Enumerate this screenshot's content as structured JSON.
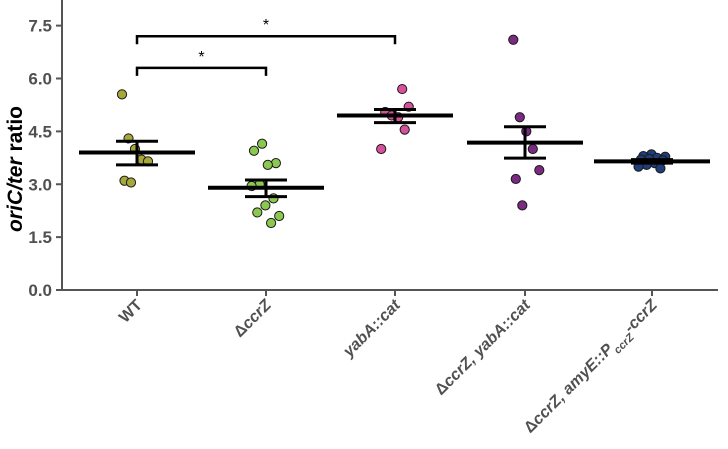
{
  "chart_data": {
    "type": "scatter",
    "style": "dot-plot with mean and SEM error bars",
    "title": "",
    "ylabel": {
      "italic": "oriC/ter",
      "normal": " ratio"
    },
    "xlabel": "",
    "ylim": [
      0,
      8.0
    ],
    "yticks": [
      "0.0",
      "1.5",
      "3.0",
      "4.5",
      "6.0",
      "7.5"
    ],
    "yticks_values": [
      0.0,
      1.5,
      3.0,
      4.5,
      6.0,
      7.5
    ],
    "grid": false,
    "groups": [
      {
        "name": "WT",
        "label_parts": [
          {
            "text": "WT",
            "style": "normal"
          }
        ],
        "color": "#a6a83a",
        "points": [
          5.55,
          4.3,
          4.0,
          3.7,
          3.65,
          3.1,
          3.05
        ],
        "mean": 3.9,
        "sem_low": 3.55,
        "sem_high": 4.22
      },
      {
        "name": "ΔccrZ",
        "label_parts": [
          {
            "text": "Δ",
            "style": "normal"
          },
          {
            "text": "ccrZ",
            "style": "italic"
          }
        ],
        "color": "#8ac850",
        "points": [
          4.15,
          3.95,
          3.6,
          3.55,
          3.0,
          2.95,
          2.6,
          2.4,
          2.2,
          2.1,
          1.9
        ],
        "mean": 2.9,
        "sem_low": 2.65,
        "sem_high": 3.12
      },
      {
        "name": "yabA::cat",
        "label_parts": [
          {
            "text": "yabA::cat",
            "style": "italic"
          }
        ],
        "color": "#d6509c",
        "points": [
          5.7,
          5.2,
          5.05,
          4.95,
          4.9,
          4.55,
          4.0
        ],
        "mean": 4.95,
        "sem_low": 4.75,
        "sem_high": 5.12
      },
      {
        "name": "ΔccrZ, yabA::cat",
        "label_parts": [
          {
            "text": "Δ",
            "style": "normal"
          },
          {
            "text": "ccrZ, yabA::cat",
            "style": "italic"
          }
        ],
        "color": "#7a2a82",
        "points": [
          7.1,
          4.9,
          4.5,
          4.0,
          3.4,
          3.15,
          2.4
        ],
        "mean": 4.18,
        "sem_low": 3.74,
        "sem_high": 4.63
      },
      {
        "name": "ΔccrZ, amyE::PccrZ-ccrZ",
        "label_parts": [
          {
            "text": "Δ",
            "style": "normal"
          },
          {
            "text": "ccrZ, amyE::P",
            "style": "italic"
          },
          {
            "text": "ccrZ",
            "style": "italic-sub"
          },
          {
            "text": "-ccrZ",
            "style": "italic"
          }
        ],
        "color": "#1f3d78",
        "points": [
          3.85,
          3.8,
          3.78,
          3.75,
          3.72,
          3.7,
          3.68,
          3.6,
          3.55,
          3.5,
          3.45
        ],
        "mean": 3.65,
        "sem_low": 3.6,
        "sem_high": 3.7
      }
    ],
    "significance": [
      {
        "from": 0,
        "to": 1,
        "label": "*",
        "height": 6.3
      },
      {
        "from": 0,
        "to": 2,
        "label": "*",
        "height": 7.2
      }
    ]
  }
}
